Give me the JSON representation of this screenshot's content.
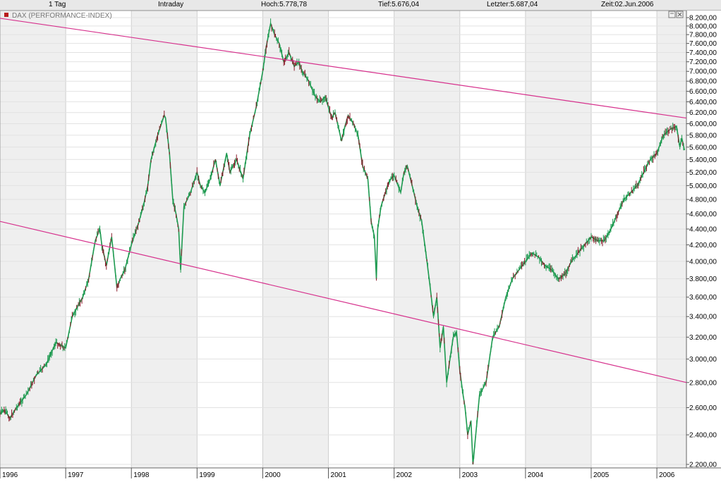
{
  "header": {
    "period": "1 Tag",
    "mode": "Intraday",
    "high": "Hoch:5.778,78",
    "low": "Tief:5.676,04",
    "last": "Letzter:5.687,04",
    "time": "Zeit:02.Jun.2006"
  },
  "chart_data": {
    "type": "line",
    "title": "DAX (PERFORMANCE-INDEX)",
    "xlabel": "",
    "ylabel": "",
    "x_range": [
      1996.0,
      2006.45
    ],
    "ylim": [
      2200,
      8200
    ],
    "y_scale": "log",
    "grid": true,
    "yticks": [
      2200,
      2400,
      2600,
      2800,
      3000,
      3200,
      3400,
      3600,
      3800,
      4000,
      4200,
      4400,
      4600,
      4800,
      5000,
      5200,
      5400,
      5600,
      5800,
      6000,
      6200,
      6400,
      6600,
      6800,
      7000,
      7200,
      7400,
      7600,
      7800,
      8000,
      8200
    ],
    "ytick_labels": [
      "2.200,00",
      "2.400,00",
      "2.600,00",
      "2.800,00",
      "3.000,00",
      "3.200,00",
      "3.400,00",
      "3.600,00",
      "3.800,00",
      "4.000,00",
      "4.200,00",
      "4.400,00",
      "4.600,00",
      "4.800,00",
      "5.000,00",
      "5.200,00",
      "5.400,00",
      "5.600,00",
      "5.800,00",
      "6.000,00",
      "6.200,00",
      "6.400,00",
      "6.600,00",
      "6.800,00",
      "7.000,00",
      "7.200,00",
      "7.400,00",
      "7.600,00",
      "7.800,00",
      "8.000,00",
      "8.200,00"
    ],
    "xticks": [
      1996,
      1997,
      1998,
      1999,
      2000,
      2001,
      2002,
      2003,
      2004,
      2005,
      2006
    ],
    "xtick_labels": [
      "1996",
      "1997",
      "1998",
      "1999",
      "2000",
      "2001",
      "2002",
      "2003",
      "2004",
      "2005",
      "2006"
    ],
    "series": [
      {
        "color": "#1e9a50",
        "x": [
          1996.0,
          1996.05,
          1996.1,
          1996.15,
          1996.25,
          1996.4,
          1996.55,
          1996.7,
          1996.85,
          1997.0,
          1997.1,
          1997.18,
          1997.26,
          1997.35,
          1997.45,
          1997.52,
          1997.55,
          1997.62,
          1997.7,
          1997.78,
          1997.83,
          1997.9,
          1998.0,
          1998.1,
          1998.18,
          1998.25,
          1998.3,
          1998.4,
          1998.5,
          1998.52,
          1998.58,
          1998.63,
          1998.68,
          1998.72,
          1998.75,
          1998.8,
          1998.9,
          1999.0,
          1999.05,
          1999.12,
          1999.2,
          1999.28,
          1999.35,
          1999.45,
          1999.5,
          1999.6,
          1999.7,
          1999.8,
          1999.9,
          2000.0,
          2000.05,
          2000.12,
          2000.18,
          2000.25,
          2000.32,
          2000.4,
          2000.48,
          2000.55,
          2000.6,
          2000.7,
          2000.8,
          2000.88,
          2000.95,
          2001.05,
          2001.1,
          2001.2,
          2001.25,
          2001.3,
          2001.38,
          2001.45,
          2001.52,
          2001.6,
          2001.65,
          2001.7,
          2001.73,
          2001.75,
          2001.8,
          2001.9,
          2001.95,
          2002.0,
          2002.1,
          2002.15,
          2002.2,
          2002.3,
          2002.35,
          2002.42,
          2002.5,
          2002.55,
          2002.6,
          2002.65,
          2002.7,
          2002.75,
          2002.8,
          2002.85,
          2002.9,
          2002.95,
          2003.0,
          2003.05,
          2003.08,
          2003.12,
          2003.17,
          2003.2,
          2003.3,
          2003.4,
          2003.5,
          2003.6,
          2003.7,
          2003.8,
          2003.9,
          2004.0,
          2004.1,
          2004.2,
          2004.3,
          2004.4,
          2004.5,
          2004.6,
          2004.7,
          2004.8,
          2004.9,
          2005.0,
          2005.1,
          2005.2,
          2005.3,
          2005.4,
          2005.5,
          2005.6,
          2005.7,
          2005.8,
          2005.9,
          2006.0,
          2006.1,
          2006.2,
          2006.3,
          2006.35,
          2006.38,
          2006.42
        ],
        "values": [
          2550,
          2580,
          2560,
          2520,
          2600,
          2700,
          2860,
          2950,
          3150,
          3100,
          3400,
          3500,
          3600,
          3800,
          4250,
          4400,
          4200,
          3950,
          4300,
          3700,
          3800,
          3900,
          4200,
          4450,
          4700,
          5000,
          5400,
          5800,
          6150,
          6100,
          5500,
          4800,
          4600,
          4400,
          3900,
          4700,
          4900,
          5200,
          5000,
          4900,
          5100,
          5400,
          5000,
          5500,
          5200,
          5400,
          5100,
          5800,
          6300,
          7000,
          7500,
          8060,
          7800,
          7600,
          7200,
          7400,
          7100,
          7200,
          7000,
          6800,
          6500,
          6400,
          6500,
          6100,
          6200,
          5700,
          5950,
          6150,
          6000,
          5800,
          5300,
          5100,
          4500,
          4300,
          3800,
          4400,
          4700,
          5000,
          5100,
          5150,
          4900,
          5200,
          5300,
          4900,
          4700,
          4500,
          4000,
          3700,
          3400,
          3600,
          3100,
          3300,
          2800,
          3000,
          3200,
          3250,
          2900,
          2700,
          2600,
          2400,
          2500,
          2200,
          2700,
          2800,
          3200,
          3300,
          3600,
          3800,
          3900,
          4000,
          4100,
          4050,
          3950,
          3900,
          3800,
          3850,
          4000,
          4100,
          4200,
          4300,
          4250,
          4250,
          4400,
          4600,
          4800,
          4900,
          5000,
          5200,
          5400,
          5500,
          5800,
          5900,
          5950,
          5600,
          5750,
          5550
        ]
      }
    ],
    "trendlines": [
      {
        "color": "#d6308c",
        "x": [
          1995.93,
          2006.45
        ],
        "y": [
          8200,
          6100
        ]
      },
      {
        "color": "#d6308c",
        "x": [
          1996.0,
          2006.45
        ],
        "y": [
          4500,
          2800
        ]
      }
    ]
  }
}
